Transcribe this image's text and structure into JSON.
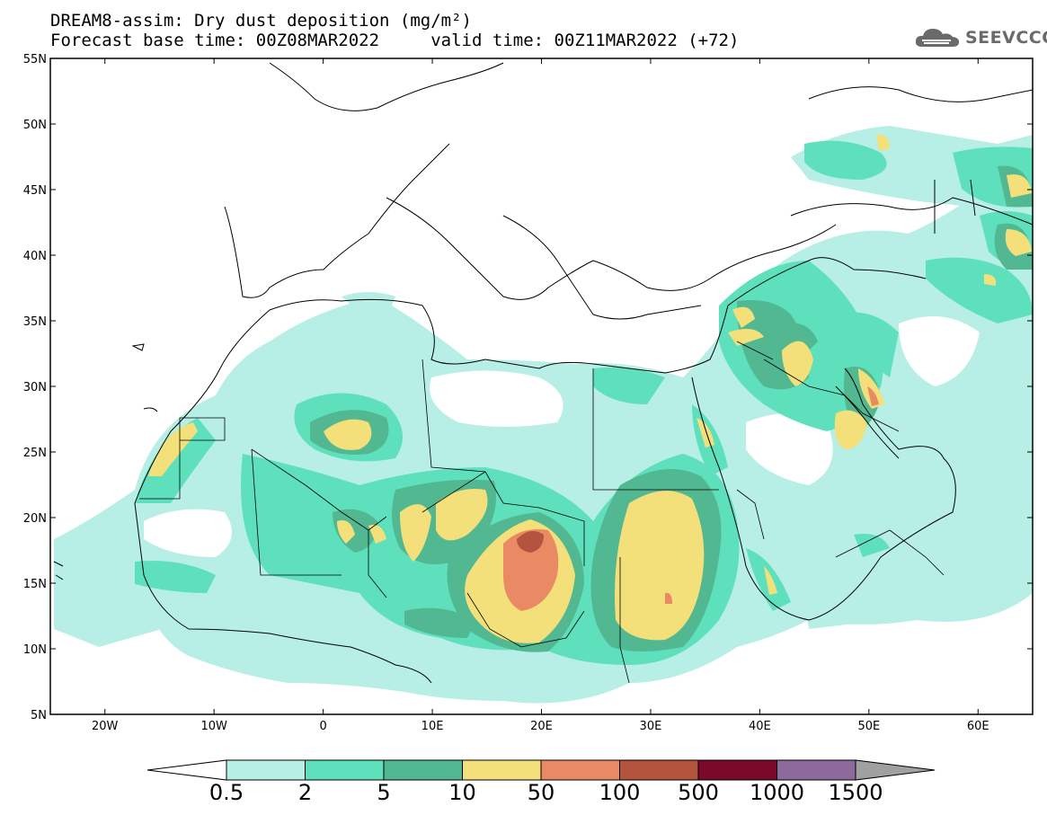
{
  "header": {
    "title_line1": "DREAM8-assim: Dry dust deposition (mg/m²)",
    "title_line2": "Forecast base time: 00Z08MAR2022     valid time: 00Z11MAR2022 (+72)",
    "logo_text": "SEEVCCC"
  },
  "map": {
    "lon_range": [
      -25,
      65
    ],
    "lat_range": [
      5,
      55
    ],
    "lat_labels": [
      "55N",
      "50N",
      "45N",
      "40N",
      "35N",
      "30N",
      "25N",
      "20N",
      "15N",
      "10N",
      "5N"
    ],
    "lon_labels": [
      "20W",
      "10W",
      "0",
      "10E",
      "20E",
      "30E",
      "40E",
      "50E",
      "60E"
    ]
  },
  "colorbar": {
    "labels": [
      "0.5",
      "2",
      "5",
      "10",
      "50",
      "100",
      "500",
      "1000",
      "1500"
    ],
    "colors": [
      "#b7efe6",
      "#5fe0bd",
      "#52b891",
      "#f4e07a",
      "#e98a64",
      "#b4533e",
      "#7b0a2a",
      "#8c6a9e"
    ],
    "under_color": "#ffffff",
    "over_color": "#a0a0a0"
  }
}
